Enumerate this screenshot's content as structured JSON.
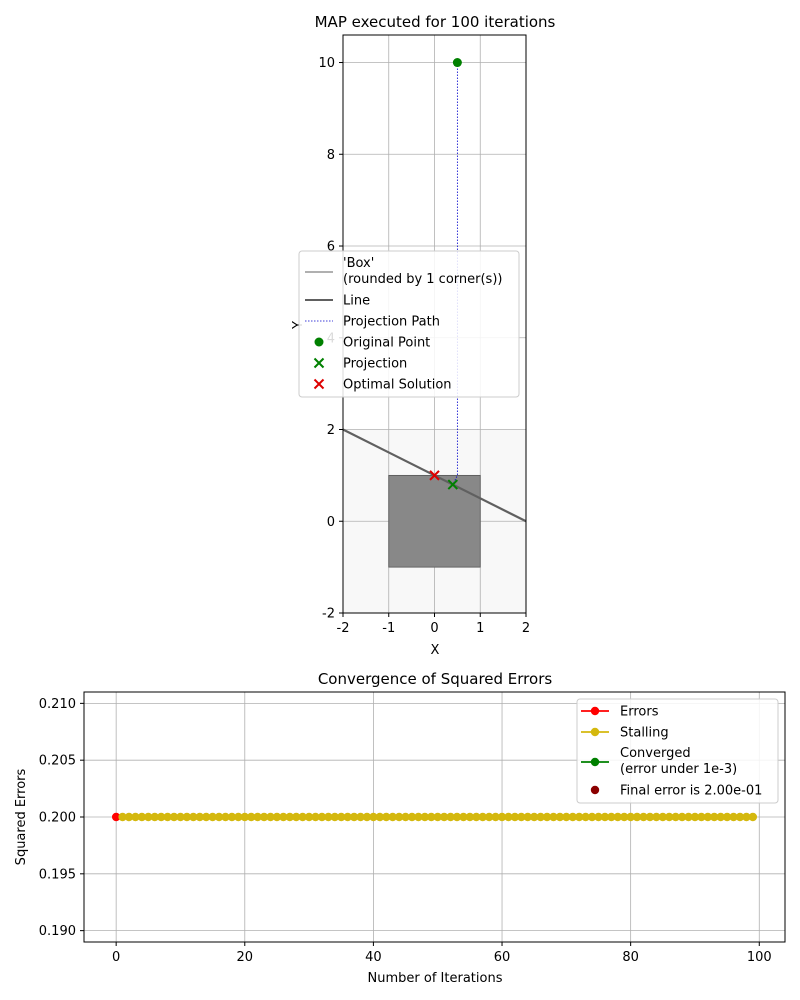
{
  "chart_data": [
    {
      "type": "scatter",
      "title": "MAP executed for 100 iterations",
      "xlabel": "X",
      "ylabel": "Y",
      "xlim": [
        -2,
        2
      ],
      "ylim": [
        -2,
        10.6
      ],
      "xticks": [
        "-2",
        "-1",
        "0",
        "1",
        "2"
      ],
      "yticks": [
        "-2",
        "0",
        "2",
        "4",
        "6",
        "8",
        "10"
      ],
      "grid": true,
      "legend_position": "center",
      "box": {
        "x": [
          -1,
          1
        ],
        "y": [
          -1,
          1
        ],
        "color": "#888888"
      },
      "line": {
        "x": [
          -2,
          2
        ],
        "y": [
          2,
          0
        ],
        "color": "#606060"
      },
      "projection_path": {
        "x": [
          0.5,
          0.5,
          0.4
        ],
        "y": [
          10,
          1.0,
          0.8
        ],
        "color": "#0000cc"
      },
      "original_point": {
        "x": 0.5,
        "y": 10,
        "color": "#008000"
      },
      "projection": {
        "x": 0.4,
        "y": 0.8,
        "color": "#008000"
      },
      "optimal_solution": {
        "x": 0,
        "y": 1,
        "color": "#dd0000"
      },
      "legend": [
        {
          "label": "'Box'",
          "label2": "(rounded by 1 corner(s))",
          "kind": "line",
          "color": "#b0b0b0"
        },
        {
          "label": "Line",
          "kind": "line",
          "color": "#606060"
        },
        {
          "label": "Projection Path",
          "kind": "dotted",
          "color": "#0000cc"
        },
        {
          "label": "Original Point",
          "kind": "dot",
          "color": "#008000"
        },
        {
          "label": "Projection",
          "kind": "cross",
          "color": "#008000"
        },
        {
          "label": "Optimal Solution",
          "kind": "cross",
          "color": "#dd0000"
        }
      ]
    },
    {
      "type": "line",
      "title": "Convergence of Squared Errors",
      "xlabel": "Number of Iterations",
      "ylabel": "Squared Errors",
      "xlim": [
        -5,
        104
      ],
      "ylim": [
        0.189,
        0.211
      ],
      "xticks": [
        "0",
        "20",
        "40",
        "60",
        "80",
        "100"
      ],
      "yticks": [
        "0.190",
        "0.195",
        "0.200",
        "0.205",
        "0.210"
      ],
      "grid": true,
      "legend_position": "top-right",
      "series": [
        {
          "name": "Errors",
          "x_start": 0,
          "x_end": 0,
          "value": 0.2,
          "color": "#ff0000"
        },
        {
          "name": "Stalling",
          "x_start": 1,
          "x_end": 99,
          "value": 0.2,
          "color": "#d4b80e"
        }
      ],
      "legend": [
        {
          "label": "Errors",
          "kind": "linedot",
          "color": "#ff0000"
        },
        {
          "label": "Stalling",
          "kind": "linedot",
          "color": "#d4b80e"
        },
        {
          "label": "Converged",
          "label2": "(error under 1e-3)",
          "kind": "linedot",
          "color": "#008000"
        },
        {
          "label": "Final error is 2.00e-01",
          "kind": "dot",
          "color": "#8b0000"
        }
      ]
    }
  ]
}
